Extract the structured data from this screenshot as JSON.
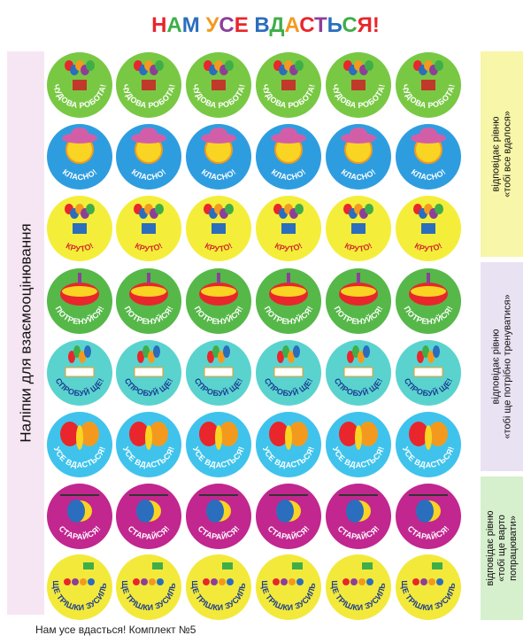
{
  "header": {
    "title": "НАМ УСЕ ВДАСТЬСЯ!"
  },
  "side_label": "Наліпки для взаємооцінювання",
  "levels": [
    {
      "lines": [
        "відповідає рівню",
        "«тобі все вдалося»"
      ]
    },
    {
      "lines": [
        "відповідає рівню",
        "«тобі ще потрібно тренуватися»"
      ]
    },
    {
      "lines": [
        "відповідає рівню",
        "«тобі ще варто",
        "попрацювати»"
      ]
    }
  ],
  "rows": [
    {
      "label": "ЧУДОВА РОБОТА!"
    },
    {
      "label": "КЛАСНО!"
    },
    {
      "label": "КРУТО!"
    },
    {
      "label": "ПОТРЕНУЙСЯ!"
    },
    {
      "label": "СПРОБУЙ ЩЕ!"
    },
    {
      "label": "УСЕ ВДАСТЬСЯ!"
    },
    {
      "label": "СТАРАЙСЯ!"
    },
    {
      "label": "ЩЕ ТРІШКИ ЗУСИЛЬ!"
    }
  ],
  "footer": "Нам усе вдасться! Комплект №5"
}
